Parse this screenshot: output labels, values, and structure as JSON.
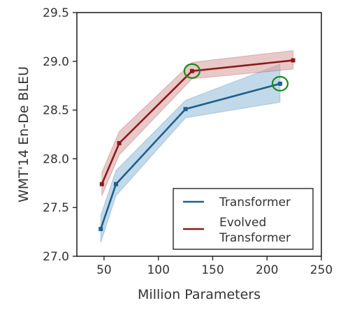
{
  "chart_data": {
    "type": "line",
    "title": "",
    "xlabel": "Million Parameters",
    "ylabel": "WMT'14 En-De BLEU",
    "xlim": [
      25,
      250
    ],
    "ylim": [
      27.0,
      29.5
    ],
    "xticks": [
      50,
      100,
      150,
      200,
      250
    ],
    "yticks": [
      27.0,
      27.5,
      28.0,
      28.5,
      29.0,
      29.5
    ],
    "xtick_labels": [
      "50",
      "100",
      "150",
      "200",
      "250"
    ],
    "ytick_labels": [
      "27.0",
      "27.5",
      "28.0",
      "28.5",
      "29.0",
      "29.5"
    ],
    "grid": false,
    "legend_position": "bottom-right",
    "series": [
      {
        "name": "Transformer",
        "color": "#1f5f8b",
        "band_color": "#8fbad8",
        "x": [
          47,
          61,
          125,
          212
        ],
        "y": [
          27.28,
          27.74,
          28.51,
          28.77
        ],
        "lower": [
          27.14,
          27.62,
          28.42,
          28.58
        ],
        "upper": [
          27.42,
          27.88,
          28.6,
          28.97
        ],
        "highlighted_index": 3
      },
      {
        "name": "Evolved\nTransformer",
        "color": "#8b1a1a",
        "band_color": "#d79a9a",
        "x": [
          48,
          64,
          131,
          224
        ],
        "y": [
          27.74,
          28.16,
          28.9,
          29.01
        ],
        "lower": [
          27.62,
          28.04,
          28.82,
          28.92
        ],
        "upper": [
          27.86,
          28.28,
          28.99,
          29.11
        ],
        "highlighted_index": 2
      }
    ],
    "highlight_color": "#1a8a1a"
  }
}
